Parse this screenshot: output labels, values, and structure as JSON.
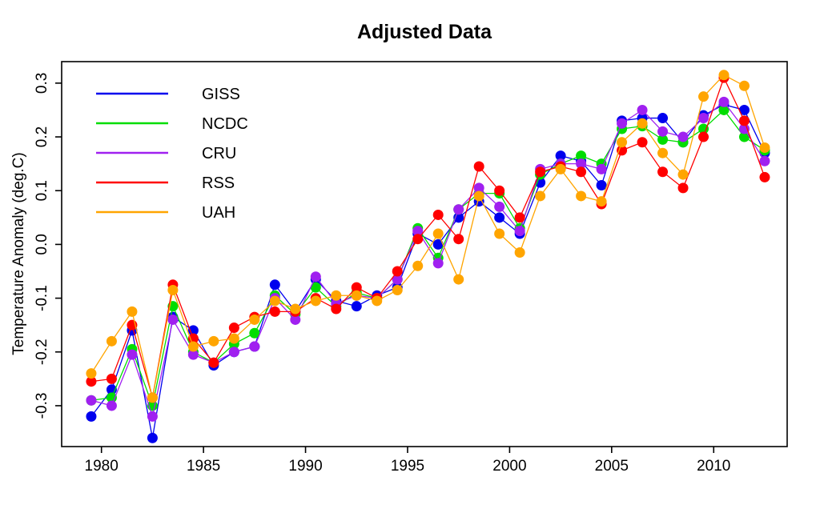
{
  "chart_data": {
    "type": "line",
    "title": "Adjusted Data",
    "xlabel": "",
    "ylabel": "Temperature Anomaly (deg.C)",
    "grid": false,
    "legend_position": "top-left",
    "x_years": [
      1979,
      1980,
      1981,
      1982,
      1983,
      1984,
      1985,
      1986,
      1987,
      1988,
      1989,
      1990,
      1991,
      1992,
      1993,
      1994,
      1995,
      1996,
      1997,
      1998,
      1999,
      2000,
      2001,
      2002,
      2003,
      2004,
      2005,
      2006,
      2007,
      2008,
      2009,
      2010,
      2011,
      2012
    ],
    "x_point_offset": 0.5,
    "xlim": [
      1978.05,
      2013.6
    ],
    "ylim": [
      -0.376,
      0.34
    ],
    "xticks": [
      1980,
      1985,
      1990,
      1995,
      2000,
      2005,
      2010
    ],
    "xtick_labels": [
      "1980",
      "1985",
      "1990",
      "1995",
      "2000",
      "2005",
      "2010"
    ],
    "yticks": [
      0.3,
      0.2,
      0.1,
      0.0,
      -0.1,
      -0.2,
      -0.3
    ],
    "ytick_labels": [
      "0.3",
      "0.2",
      "0.1",
      "0.0",
      "-0.1",
      "-0.2",
      "-0.3"
    ],
    "series": [
      {
        "name": "GISS",
        "color": "#0000EE",
        "values": [
          -0.32,
          -0.27,
          -0.16,
          -0.36,
          -0.135,
          -0.16,
          -0.225,
          -0.2,
          -0.19,
          -0.075,
          -0.125,
          -0.065,
          -0.105,
          -0.115,
          -0.095,
          -0.08,
          0.02,
          0.0,
          0.05,
          0.08,
          0.05,
          0.02,
          0.115,
          0.165,
          0.155,
          0.11,
          0.23,
          0.235,
          0.235,
          0.19,
          0.24,
          0.26,
          0.25,
          0.17
        ]
      },
      {
        "name": "NCDC",
        "color": "#00DD00",
        "values": [
          -0.29,
          -0.285,
          -0.195,
          -0.3,
          -0.115,
          -0.2,
          -0.22,
          -0.185,
          -0.165,
          -0.095,
          -0.13,
          -0.08,
          -0.115,
          -0.09,
          -0.1,
          -0.065,
          0.03,
          -0.025,
          0.065,
          0.095,
          0.095,
          0.03,
          0.13,
          0.15,
          0.165,
          0.15,
          0.215,
          0.22,
          0.195,
          0.19,
          0.215,
          0.25,
          0.2,
          0.175
        ]
      },
      {
        "name": "CRU",
        "color": "#A020F0",
        "values": [
          -0.29,
          -0.3,
          -0.205,
          -0.32,
          -0.14,
          -0.205,
          -0.22,
          -0.2,
          -0.19,
          -0.1,
          -0.14,
          -0.06,
          -0.11,
          -0.095,
          -0.1,
          -0.065,
          0.025,
          -0.035,
          0.065,
          0.105,
          0.07,
          0.025,
          0.14,
          0.15,
          0.15,
          0.14,
          0.225,
          0.25,
          0.21,
          0.2,
          0.235,
          0.265,
          0.215,
          0.155
        ]
      },
      {
        "name": "RSS",
        "color": "#FF0000",
        "values": [
          -0.255,
          -0.25,
          -0.15,
          -0.285,
          -0.075,
          -0.175,
          -0.22,
          -0.155,
          -0.135,
          -0.125,
          -0.125,
          -0.1,
          -0.12,
          -0.08,
          -0.1,
          -0.05,
          0.01,
          0.055,
          0.01,
          0.145,
          0.1,
          0.05,
          0.135,
          0.145,
          0.135,
          0.075,
          0.175,
          0.19,
          0.135,
          0.105,
          0.2,
          0.31,
          0.23,
          0.125
        ]
      },
      {
        "name": "UAH",
        "color": "#FFA500",
        "values": [
          -0.24,
          -0.18,
          -0.125,
          -0.285,
          -0.085,
          -0.19,
          -0.18,
          -0.175,
          -0.14,
          -0.105,
          -0.12,
          -0.105,
          -0.095,
          -0.095,
          -0.105,
          -0.085,
          -0.04,
          0.02,
          -0.065,
          0.09,
          0.02,
          -0.015,
          0.09,
          0.14,
          0.09,
          0.08,
          0.19,
          0.225,
          0.17,
          0.13,
          0.275,
          0.315,
          0.295,
          0.18
        ]
      }
    ]
  }
}
